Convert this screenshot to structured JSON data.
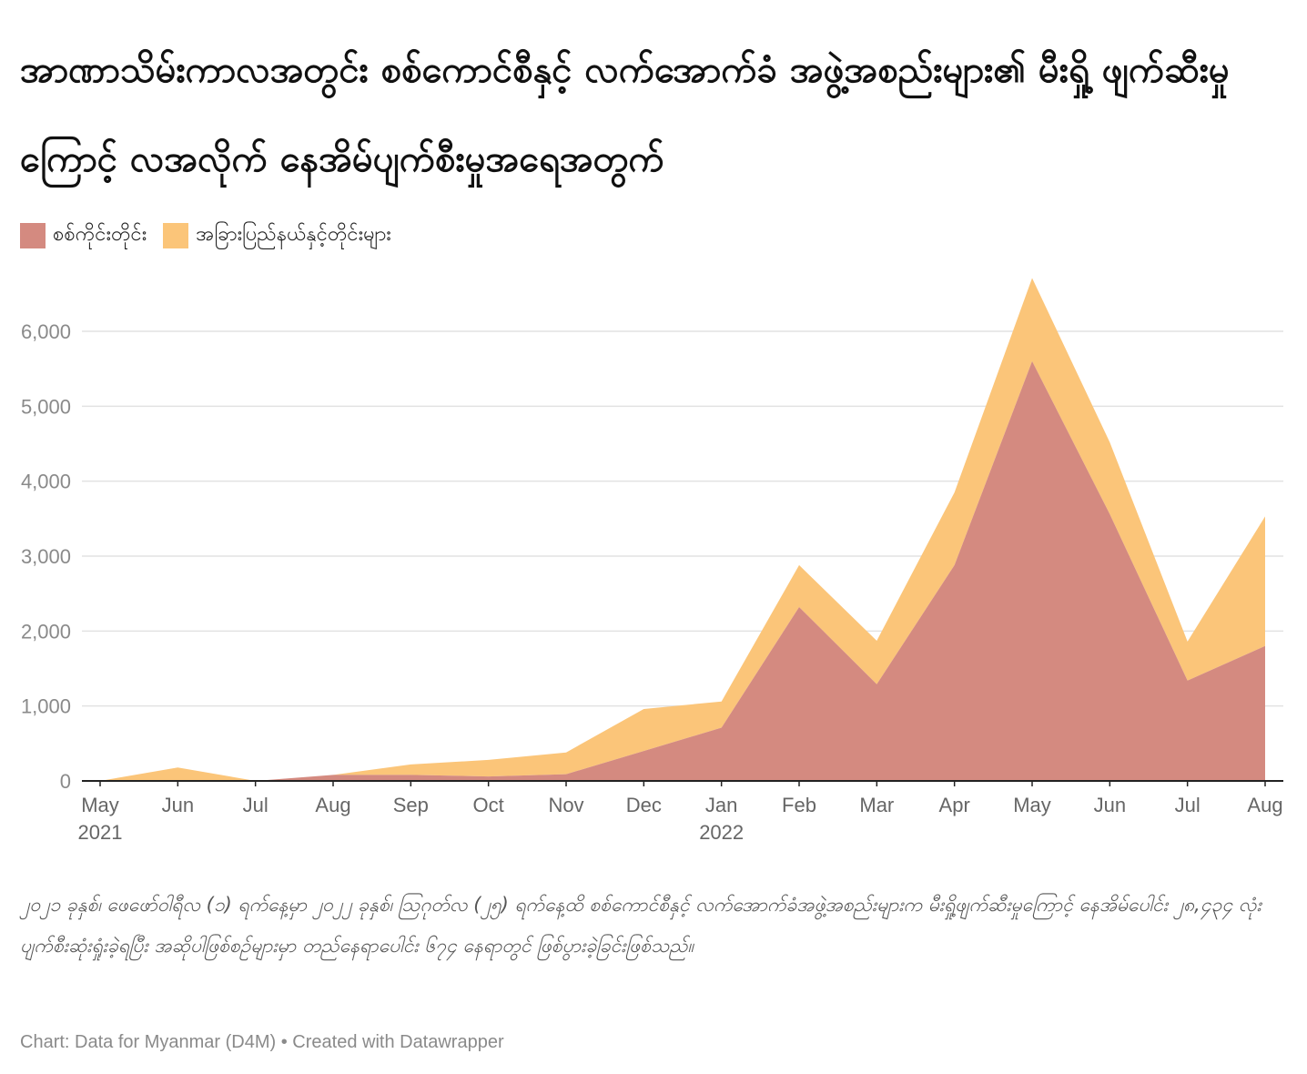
{
  "title": "အာဏာသိမ်းကာလအတွင်း စစ်ကောင်စီနှင့် လက်အောက်ခံ အဖွဲ့အစည်းများ၏ မီးရှို့ ဖျက်ဆီးမှုကြောင့် လအလိုက် နေအိမ်ပျက်စီးမှုအရေအတွက်",
  "note": "၂၀၂၁ ခုနှစ်၊ ဖေဖော်ဝါရီလ (၁) ရက်နေ့မှာ ၂၀၂၂ ခုနှစ်၊ ဩဂုတ်လ (၂၅) ရက်နေ့ထိ စစ်ကောင်စီနှင့် လက်အောက်ခံအဖွဲ့အစည်းများက မီးရှို့ဖျက်ဆီးမှုကြောင့် နေအိမ်ပေါင်း ၂၈,၄၃၄ လုံးပျက်စီးဆုံးရှုံးခဲ့ရပြီး အဆိုပါဖြစ်စဉ်များမှာ တည်နေရာပေါင်း ၆၇၄ နေရာတွင် ဖြစ်ပွားခဲ့ခြင်းဖြစ်သည်။",
  "footer": "Chart: Data for Myanmar (D4M) • Created with Datawrapper",
  "colors": {
    "series1": "#d48a80",
    "series2": "#fbc579"
  },
  "chart_data": {
    "type": "area",
    "stacked": true,
    "x": [
      "May",
      "Jun",
      "Jul",
      "Aug",
      "Sep",
      "Oct",
      "Nov",
      "Dec",
      "Jan",
      "Feb",
      "Mar",
      "Apr",
      "May",
      "Jun",
      "Jul",
      "Aug"
    ],
    "year_labels": {
      "0": "2021",
      "8": "2022"
    },
    "series": [
      {
        "name": "စစ်ကိုင်းတိုင်း",
        "values": [
          0,
          0,
          0,
          80,
          80,
          60,
          90,
          400,
          710,
          2320,
          1290,
          2880,
          5600,
          3560,
          1340,
          1800
        ]
      },
      {
        "name": "အခြားပြည်နယ်နှင့်တိုင်းများ",
        "values": [
          0,
          180,
          0,
          0,
          140,
          220,
          290,
          560,
          350,
          560,
          580,
          970,
          1110,
          960,
          520,
          1730
        ]
      }
    ],
    "yticks": [
      0,
      1000,
      2000,
      3000,
      4000,
      5000,
      6000
    ],
    "ytick_labels": [
      "0",
      "1,000",
      "2,000",
      "3,000",
      "4,000",
      "5,000",
      "6,000"
    ],
    "ylim": [
      0,
      6800
    ],
    "grid": true,
    "legend_position": "top-left"
  }
}
